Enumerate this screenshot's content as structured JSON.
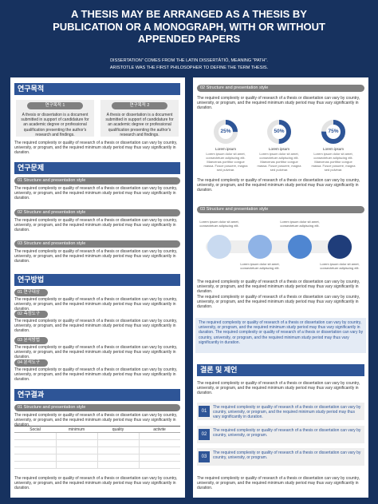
{
  "header": {
    "title": "A THESIS MAY BE ARRANGED AS A THESIS BY PUBLICATION OR A MONOGRAPH, WITH OR WITHOUT APPENDED PAPERS",
    "subtitle": [
      "DISSERTATION\" COMES FROM THE LATIN DISSERTĀTIŌ, MEANING \"PATH\".",
      "ARISTOTLE WAS THE FIRST PHILOSOPHER TO DEFINE THE TERM THESIS."
    ]
  },
  "left": {
    "purpose": {
      "heading": "연구목적",
      "cards": [
        {
          "title": "연구목적 1",
          "text": "A thesis or dissertation is a document submitted in support of candidature for an academic degree or professional qualification presenting the author's research and findings."
        },
        {
          "title": "연구목적 2",
          "text": "A thesis or dissertation is a document submitted in support of candidature for an academic degree or professional qualification presenting the author's research and findings."
        }
      ],
      "text": "The required complexity or quality of research of a thesis or dissertation can vary by country, university, or program, and the required minimum study period may thus vary significantly in duration."
    },
    "problem": {
      "heading": "연구문제",
      "items": [
        {
          "label": "01 Structure and presentation style",
          "text": "The required complexity or quality of research of a thesis or dissertation can vary by country, university, or program, and the required minimum study period may thus vary significantly in duration."
        },
        {
          "label": "02 Structure and presentation style",
          "text": "The required complexity or quality of research of a thesis or dissertation can vary by country, university, or program, and the required minimum study period may thus vary significantly in duration."
        },
        {
          "label": "03 Structure and presentation style",
          "text": "The required complexity or quality of research of a thesis or dissertation can vary by country, university, or program, and the required minimum study period may thus vary significantly in duration."
        }
      ]
    },
    "method": {
      "heading": "연구방법",
      "items": [
        {
          "label": "01 연구대상",
          "text": "The required complexity or quality of research of a thesis or dissertation can vary by country, university, or program, and the required minimum study period may thus vary significantly in duration."
        },
        {
          "label": "02 측정도구",
          "text": "The required complexity or quality of research of a thesis or dissertation can vary by country, university, or program, and the required minimum study period may thus vary significantly in duration."
        },
        {
          "label": "03 분석방법",
          "text": "The required complexity or quality of research of a thesis or dissertation can vary by country, university, or program, and the required minimum study period may thus vary significantly in duration."
        },
        {
          "label": "04 분석도구",
          "text": "The required complexity or quality of research of a thesis or dissertation can vary by country, university, or program, and the required minimum study period may thus vary significantly in duration."
        }
      ]
    },
    "result": {
      "heading": "연구결과",
      "items": [
        {
          "label": "01 Structure and presentation style",
          "text": "The required complexity or quality of research of a thesis or dissertation can vary by country, university, or program, and the required minimum study period may thus vary significantly in duration."
        }
      ],
      "table": {
        "columns": [
          "Social",
          "minimum",
          "quality",
          "activite"
        ]
      },
      "text": "The required complexity or quality of research of a thesis or dissertation can vary by country, university, or program, and the required minimum study period may thus vary significantly in duration."
    }
  },
  "right": {
    "s2": {
      "label": "02 Structure and presentation style",
      "text": "The required complexity or quality of research of a thesis or dissertation can vary by country, university, or program, and the required minimum study period may thus vary significantly in duration.",
      "donuts": [
        {
          "value": 25,
          "label": "25%",
          "title": "Lorem ipsum",
          "text": "Lorem ipsum dolor sit amet, consectetuer adipiscing elit. Maecenas porttitor congue massa. Fusce posuere, magna sed pulvinar."
        },
        {
          "value": 50,
          "label": "50%",
          "title": "Lorem ipsum",
          "text": "Lorem ipsum dolor sit amet, consectetuer adipiscing elit. Maecenas porttitor congue massa. Fusce posuere, magna sed pulvinar."
        },
        {
          "value": 75,
          "label": "75%",
          "title": "Lorem ipsum",
          "text": "Lorem ipsum dolor sit amet, consectetuer adipiscing elit. Maecenas porttitor congue massa. Fusce posuere, magna sed pulvinar."
        }
      ],
      "text2": "The required complexity or quality of research of a thesis or dissertation can vary by country, university, or program, and the required minimum study period may thus vary significantly in duration."
    },
    "s3": {
      "label": "03 Structure and presentation style",
      "steps": [
        "Lorem ipsum dolor sit amet, consectetuer adipiscing elit.",
        "Lorem ipsum dolor sit amet, consectetuer adipiscing elit.",
        "Lorem ipsum dolor sit amet, consectetuer adipiscing elit.",
        "Lorem ipsum dolor sit amet, consectetuer adipiscing elit."
      ],
      "texts": [
        "The required complexity or quality of research of a thesis or dissertation can vary by country, university, or program, and the required minimum study period may thus vary significantly in duration.",
        "The required complexity or quality of research of a thesis or dissertation can vary by country, university, or program, and the required minimum study period may thus vary significantly in duration."
      ],
      "highlight": "The required complexity or quality of research of a thesis or dissertation can vary by country, university, or program, and the required minimum study period may thus vary significantly in duration. The required complexity or quality of research of a thesis or dissertation can vary by country, university, or program, and the required minimum study period may thus vary significantly in duration."
    },
    "conclusion": {
      "heading": "결론 및 제언",
      "text": "The required complexity or quality of research of a thesis or dissertation can vary by country, university, or program, and the required minimum study period may thus vary significantly in duration.",
      "items": [
        {
          "num": "01",
          "text": "The required complexity or quality of research of a thesis or dissertation can vary by country, university, or program, and the required minimum study period may thus vary significantly in duration."
        },
        {
          "num": "02",
          "text": "The required complexity or quality of research of a thesis or dissertation can vary by country, university, or program."
        },
        {
          "num": "03",
          "text": "The required complexity or quality of research of a thesis or dissertation can vary by country, university, or program."
        }
      ],
      "text2": "The required complexity or quality of research of a thesis or dissertation can vary by country, university, or program, and the required minimum study period may thus vary significantly in duration."
    }
  }
}
